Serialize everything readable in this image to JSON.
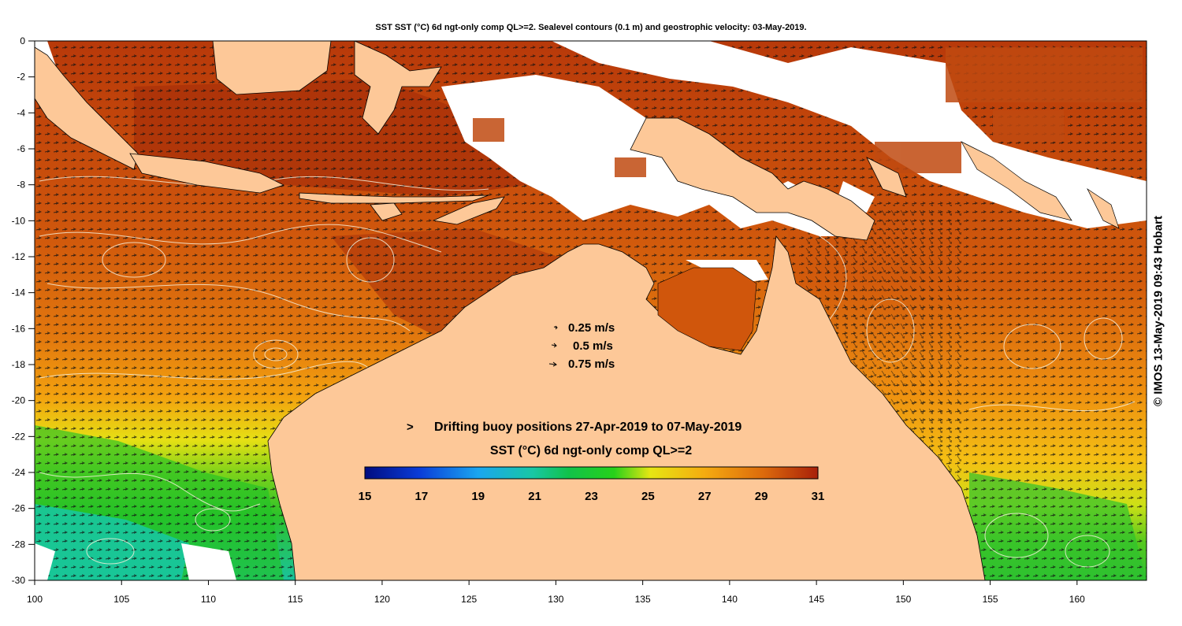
{
  "title": "SST SST (°C) 6d ngt-only comp QL>=2. Sealevel contours (0.1 m) and geostrophic velocity: 03-May-2019.",
  "credit": "© IMOS 13-May-2019 09:43 Hobart",
  "velocity_legend": [
    {
      "label": "0.25 m/s",
      "value": 0.25
    },
    {
      "label": "0.5 m/s",
      "value": 0.5
    },
    {
      "label": "0.75 m/s",
      "value": 0.75
    }
  ],
  "buoy_legend": {
    "marker": ">",
    "label": "Drifting buoy positions 27-Apr-2019 to 07-May-2019",
    "marker_color": "#ff00ff"
  },
  "colorbar": {
    "title": "SST (°C) 6d ngt-only comp QL>=2",
    "min": 15,
    "max": 31,
    "ticks": [
      "15",
      "17",
      "19",
      "21",
      "23",
      "25",
      "27",
      "29",
      "31"
    ]
  },
  "axes": {
    "lon_ticks": [
      "100",
      "105",
      "110",
      "115",
      "120",
      "125",
      "130",
      "135",
      "140",
      "145",
      "150",
      "155",
      "160"
    ],
    "lat_ticks": [
      "0",
      "-2",
      "-4",
      "-6",
      "-8",
      "-10",
      "-12",
      "-14",
      "-16",
      "-18",
      "-20",
      "-22",
      "-24",
      "-26",
      "-28",
      "-30"
    ],
    "lon_range": [
      100,
      164
    ],
    "lat_range": [
      -30,
      0
    ]
  },
  "colors": {
    "land": "#fdc898",
    "cloud": "#ffffff",
    "sst_warm": "#c84a0c",
    "sst_hot": "#a8300a",
    "sst_mid": "#f59a10",
    "sst_yellow": "#e6e613",
    "sst_green": "#22c226",
    "sst_teal": "#18c7a5"
  }
}
